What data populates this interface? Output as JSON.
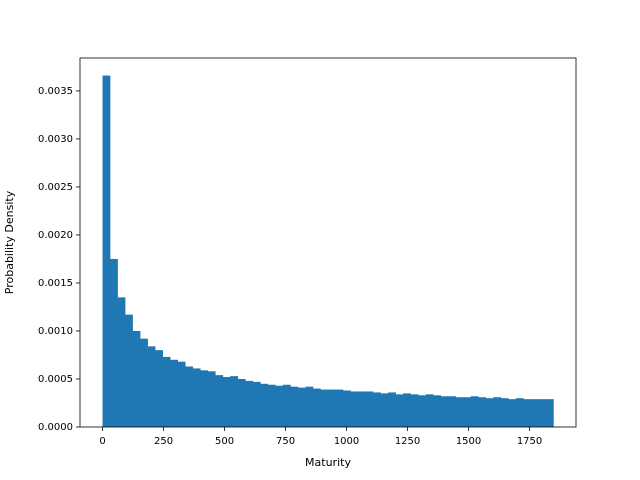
{
  "chart_data": {
    "type": "histogram",
    "xlabel": "Maturity",
    "ylabel": "Probability Density",
    "color": "#1f77b4",
    "bins": [
      0,
      30.8,
      61.6,
      92.4,
      123.2,
      154,
      184.8,
      215.6,
      246.4,
      277.2,
      308,
      338.8,
      369.6,
      400.4,
      431.2,
      462,
      492.8,
      523.6,
      554.4,
      585.2,
      616,
      646.8,
      677.6,
      708.4,
      739.2,
      770,
      800.8,
      831.6,
      862.4,
      893.2,
      924,
      954.8,
      985.6,
      1016.4,
      1047.2,
      1078,
      1108.8,
      1139.6,
      1170.4,
      1201.2,
      1232,
      1262.8,
      1293.6,
      1324.4,
      1355.2,
      1386,
      1416.8,
      1447.6,
      1478.4,
      1509.2,
      1540,
      1570.8,
      1601.6,
      1632.4,
      1663.2,
      1694,
      1724.8,
      1755.6,
      1786.4,
      1817.2,
      1848
    ],
    "values": [
      0.00366,
      0.00175,
      0.00135,
      0.00117,
      0.001,
      0.00092,
      0.00084,
      0.0008,
      0.00073,
      0.0007,
      0.00068,
      0.00063,
      0.00061,
      0.00059,
      0.00058,
      0.00054,
      0.00052,
      0.00053,
      0.0005,
      0.00048,
      0.00047,
      0.00045,
      0.00044,
      0.00043,
      0.00044,
      0.00042,
      0.00041,
      0.00042,
      0.0004,
      0.00039,
      0.00039,
      0.00039,
      0.00038,
      0.00037,
      0.00037,
      0.00037,
      0.00036,
      0.00035,
      0.00036,
      0.00034,
      0.00035,
      0.00034,
      0.00033,
      0.00034,
      0.00033,
      0.00032,
      0.00032,
      0.00031,
      0.00031,
      0.00032,
      0.00031,
      0.0003,
      0.00031,
      0.0003,
      0.00029,
      0.0003,
      0.00029,
      0.00029,
      0.00029,
      0.00029
    ],
    "xlim": [
      -92.4,
      1940.4
    ],
    "xticks": [
      0,
      250,
      500,
      750,
      1000,
      1250,
      1500,
      1750
    ],
    "ylim": [
      0,
      0.003843
    ],
    "yticks": [
      {
        "value": 0,
        "label": "0.0000"
      },
      {
        "value": 0.0005,
        "label": "0.0005"
      },
      {
        "value": 0.001,
        "label": "0.0010"
      },
      {
        "value": 0.0015,
        "label": "0.0015"
      },
      {
        "value": 0.002,
        "label": "0.0020"
      },
      {
        "value": 0.0025,
        "label": "0.0025"
      },
      {
        "value": 0.003,
        "label": "0.0030"
      },
      {
        "value": 0.0035,
        "label": "0.0035"
      }
    ]
  }
}
